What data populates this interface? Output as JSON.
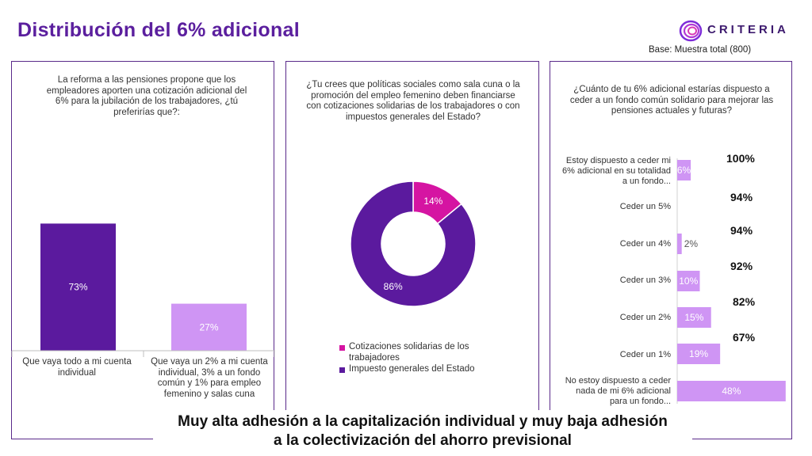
{
  "header": {
    "title": "Distribución del 6% adicional",
    "brand": "CRITERIA",
    "base_note": "Base: Muestra total (800)"
  },
  "banner": {
    "line1": "Muy alta adhesión a la capitalización individual y muy baja adhesión",
    "line2": "a la colectivización del ahorro previsional"
  },
  "colors": {
    "dark": "#5b1a9e",
    "light": "#cf95f4",
    "magenta": "#d514a2",
    "title": "#5b1f9e"
  },
  "chart_data": [
    {
      "type": "bar",
      "question": "La reforma a las pensiones propone que los empleadores aporten una cotización adicional del 6% para la jubilación de los trabajadores, ¿tú preferirías que?:",
      "categories": [
        "Que vaya todo a mi cuenta individual",
        "Que vaya un 2% a mi cuenta individual, 3% a un fondo común y 1% para empleo femenino y salas cuna"
      ],
      "values": [
        73,
        27
      ],
      "value_labels": [
        "73%",
        "27%"
      ],
      "colors": [
        "#5b1a9e",
        "#cf95f4"
      ]
    },
    {
      "type": "pie",
      "donut": true,
      "question": "¿Tu crees que políticas sociales como sala cuna o la promoción del empleo femenino deben financiarse con cotizaciones solidarias de los trabajadores o con impuestos generales del Estado?",
      "slices": [
        {
          "label": "Cotizaciones solidarias de los trabajadores",
          "value": 14,
          "value_label": "14%",
          "color": "#d514a2"
        },
        {
          "label": "Impuesto generales del Estado",
          "value": 86,
          "value_label": "86%",
          "color": "#5b1a9e"
        }
      ],
      "legend_position": "bottom"
    },
    {
      "type": "bar",
      "orientation": "horizontal",
      "question": "¿Cuánto de tu 6% adicional estarías dispuesto a ceder a un fondo común solidario para mejorar las pensiones actuales y futuras?",
      "categories": [
        "Estoy dispuesto a ceder mi 6% adicional en su totalidad a un fondo...",
        "Ceder un 5%",
        "Ceder un 4%",
        "Ceder un 3%",
        "Ceder un 2%",
        "Ceder un 1%",
        "No estoy dispuesto a ceder nada de mi 6% adicional para un fondo..."
      ],
      "values": [
        6,
        0,
        2,
        10,
        15,
        19,
        48
      ],
      "value_labels": [
        "6%",
        "",
        "2%",
        "10%",
        "15%",
        "19%",
        "48%"
      ],
      "cumulative_labels": [
        "100%",
        "94%",
        "94%",
        "92%",
        "82%",
        "67%"
      ],
      "color": "#cf95f4"
    }
  ]
}
